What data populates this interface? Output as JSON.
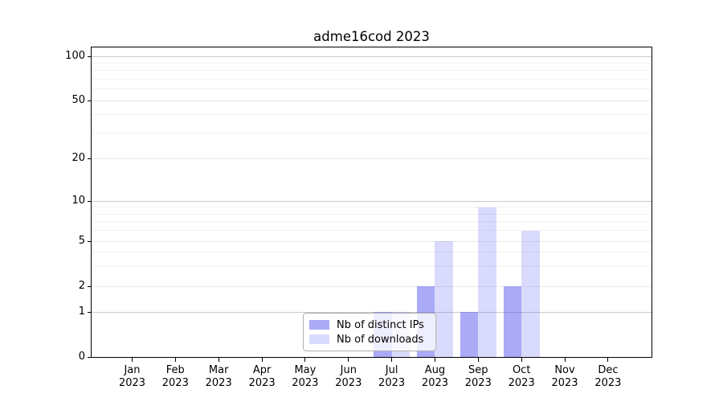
{
  "chart_data": {
    "type": "bar",
    "title": "adme16cod 2023",
    "categories": [
      "Jan",
      "Feb",
      "Mar",
      "Apr",
      "May",
      "Jun",
      "Jul",
      "Aug",
      "Sep",
      "Oct",
      "Nov",
      "Dec"
    ],
    "category_year": "2023",
    "series": [
      {
        "name": "Nb of distinct IPs",
        "color": "rgba(85,85,240,0.50)",
        "color_hex_on_white": "#aaaaf8",
        "values": [
          0,
          0,
          0,
          0,
          0,
          0,
          1,
          2,
          1,
          2,
          0,
          0
        ]
      },
      {
        "name": "Nb of downloads",
        "color": "rgba(85,85,240,0.22)",
        "color_hex_on_white": "#d8d8f8",
        "values": [
          0,
          0,
          0,
          0,
          0,
          0,
          1,
          5,
          9,
          6,
          0,
          0
        ]
      }
    ],
    "y_axis": {
      "ticks": [
        0,
        1,
        2,
        5,
        10,
        20,
        50,
        100
      ],
      "minor_ticks": [
        3,
        4,
        6,
        7,
        8,
        9,
        30,
        40,
        60,
        70,
        80,
        90
      ],
      "scale": "log-like",
      "range": [
        0,
        120
      ]
    },
    "x_axis": {
      "label_line_1": [
        "Jan",
        "Feb",
        "Mar",
        "Apr",
        "May",
        "Jun",
        "Jul",
        "Aug",
        "Sep",
        "Oct",
        "Nov",
        "Dec"
      ],
      "label_line_2": "2023"
    },
    "legend": {
      "position": "lower center",
      "entries": [
        "Nb of distinct IPs",
        "Nb of downloads"
      ]
    },
    "grid": true,
    "colors": {
      "decade_gridline": "#c8c8c8",
      "major_gridline": "#e9e9e9",
      "minor_gridline": "#f1f1f1",
      "axis": "#000000"
    }
  }
}
